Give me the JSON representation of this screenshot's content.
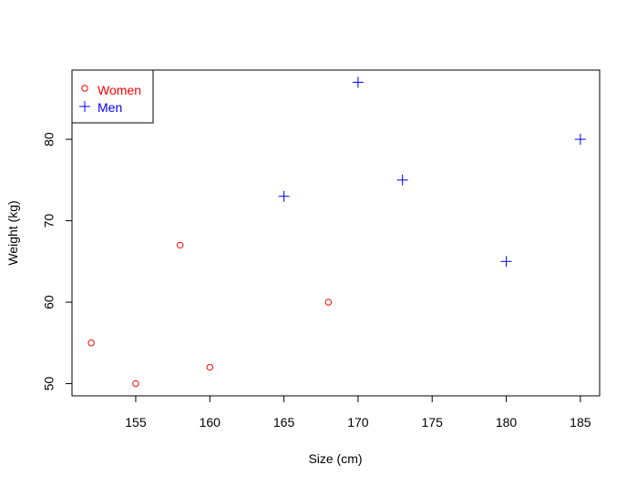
{
  "chart_data": {
    "type": "scatter",
    "title": "",
    "xlabel": "Size (cm)",
    "ylabel": "Weight (kg)",
    "xlim": [
      150.7,
      186.3
    ],
    "ylim": [
      48.5,
      88.5
    ],
    "xticks": [
      155,
      160,
      165,
      170,
      175,
      180,
      185
    ],
    "yticks": [
      50,
      60,
      70,
      80
    ],
    "grid": false,
    "legend_position": "top-left",
    "series": [
      {
        "name": "Women",
        "marker": "circle",
        "color": "#ff0000",
        "points": [
          {
            "x": 152,
            "y": 55
          },
          {
            "x": 155,
            "y": 50
          },
          {
            "x": 158,
            "y": 67
          },
          {
            "x": 160,
            "y": 52
          },
          {
            "x": 168,
            "y": 60
          }
        ]
      },
      {
        "name": "Men",
        "marker": "plus",
        "color": "#0000ff",
        "points": [
          {
            "x": 165,
            "y": 73
          },
          {
            "x": 170,
            "y": 87
          },
          {
            "x": 173,
            "y": 75
          },
          {
            "x": 180,
            "y": 65
          },
          {
            "x": 185,
            "y": 80
          }
        ]
      }
    ]
  }
}
